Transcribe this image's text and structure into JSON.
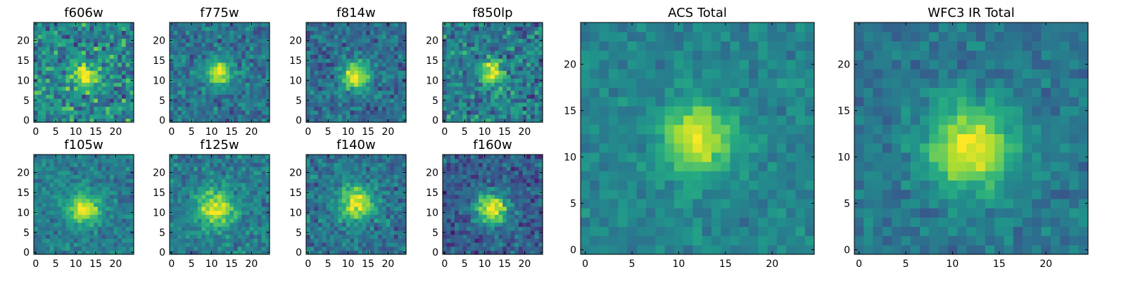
{
  "chart_data": [
    {
      "type": "heatmap",
      "title": "f606w",
      "xticks": [
        0,
        5,
        10,
        15,
        20
      ],
      "yticks": [
        0,
        5,
        10,
        15,
        20
      ],
      "grid_size": 25,
      "center": [
        12,
        11
      ],
      "peak_sigma": 2.0,
      "noise": 0.33,
      "background": 0.48,
      "colormap": "viridis"
    },
    {
      "type": "heatmap",
      "title": "f775w",
      "xticks": [
        0,
        5,
        10,
        15,
        20
      ],
      "yticks": [
        0,
        5,
        10,
        15,
        20
      ],
      "grid_size": 25,
      "center": [
        12,
        12
      ],
      "peak_sigma": 2.3,
      "noise": 0.22,
      "background": 0.38,
      "colormap": "viridis"
    },
    {
      "type": "heatmap",
      "title": "f814w",
      "xticks": [
        0,
        5,
        10,
        15,
        20
      ],
      "yticks": [
        0,
        5,
        10,
        15,
        20
      ],
      "grid_size": 25,
      "center": [
        12,
        11
      ],
      "peak_sigma": 2.4,
      "noise": 0.22,
      "background": 0.36,
      "colormap": "viridis"
    },
    {
      "type": "heatmap",
      "title": "f850lp",
      "xticks": [
        0,
        5,
        10,
        15,
        20
      ],
      "yticks": [
        0,
        5,
        10,
        15,
        20
      ],
      "grid_size": 25,
      "center": [
        12,
        12
      ],
      "peak_sigma": 2.0,
      "noise": 0.3,
      "background": 0.42,
      "colormap": "viridis"
    },
    {
      "type": "heatmap",
      "title": "f105w",
      "xticks": [
        0,
        5,
        10,
        15,
        20
      ],
      "yticks": [
        0,
        5,
        10,
        15,
        20
      ],
      "grid_size": 25,
      "center": [
        12,
        11
      ],
      "peak_sigma": 2.8,
      "noise": 0.18,
      "background": 0.42,
      "colormap": "viridis"
    },
    {
      "type": "heatmap",
      "title": "f125w",
      "xticks": [
        0,
        5,
        10,
        15,
        20
      ],
      "yticks": [
        0,
        5,
        10,
        15,
        20
      ],
      "grid_size": 25,
      "center": [
        11,
        11
      ],
      "peak_sigma": 3.2,
      "noise": 0.2,
      "background": 0.42,
      "colormap": "viridis"
    },
    {
      "type": "heatmap",
      "title": "f140w",
      "xticks": [
        0,
        5,
        10,
        15,
        20
      ],
      "yticks": [
        0,
        5,
        10,
        15,
        20
      ],
      "grid_size": 25,
      "center": [
        12,
        12
      ],
      "peak_sigma": 3.0,
      "noise": 0.22,
      "background": 0.38,
      "colormap": "viridis"
    },
    {
      "type": "heatmap",
      "title": "f160w",
      "xticks": [
        0,
        5,
        10,
        15,
        20
      ],
      "yticks": [
        0,
        5,
        10,
        15,
        20
      ],
      "grid_size": 25,
      "center": [
        12,
        11
      ],
      "peak_sigma": 2.8,
      "noise": 0.22,
      "background": 0.3,
      "colormap": "viridis"
    },
    {
      "type": "heatmap",
      "title": "ACS Total",
      "xticks": [
        0,
        5,
        10,
        15,
        20
      ],
      "yticks": [
        0,
        5,
        10,
        15,
        20
      ],
      "grid_size": 25,
      "center": [
        12,
        12
      ],
      "peak_sigma": 2.6,
      "noise": 0.13,
      "background": 0.45,
      "colormap": "viridis"
    },
    {
      "type": "heatmap",
      "title": "WFC3 IR Total",
      "xticks": [
        0,
        5,
        10,
        15,
        20
      ],
      "yticks": [
        0,
        5,
        10,
        15,
        20
      ],
      "grid_size": 25,
      "center": [
        12,
        11
      ],
      "peak_sigma": 3.2,
      "noise": 0.14,
      "background": 0.4,
      "colormap": "viridis"
    }
  ]
}
